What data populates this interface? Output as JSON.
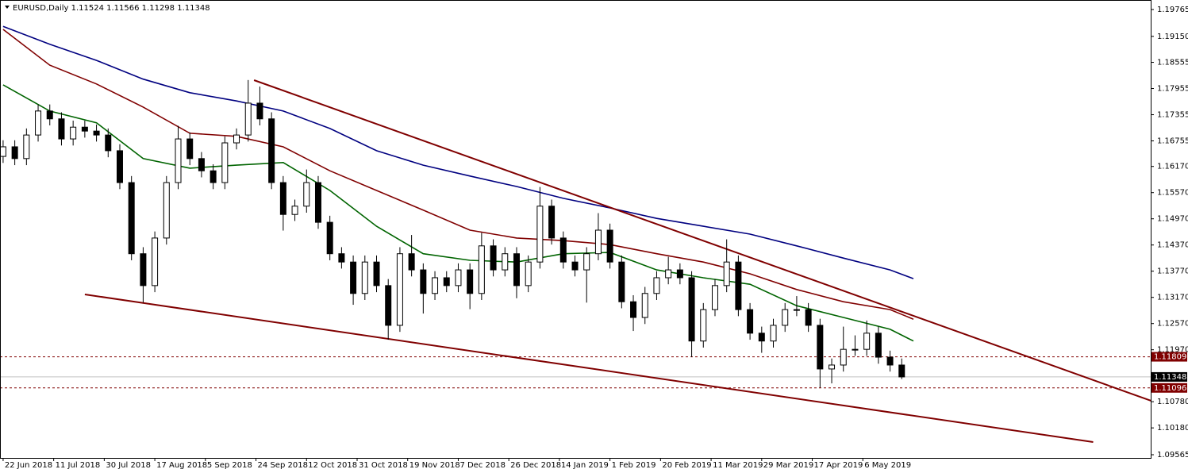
{
  "chart_data": {
    "type": "candlestick",
    "title": "EURUSD,Daily  1.11524 1.11566 1.11298 1.11348",
    "xlim": [
      -0.8,
      295
    ],
    "ylim": [
      1.09492,
      1.19983
    ],
    "x_date_ticks": [
      {
        "value": 0,
        "label": "22 Jun 2018"
      },
      {
        "value": 13,
        "label": "11 Jul 2018"
      },
      {
        "value": 26,
        "label": "30 Jul 2018"
      },
      {
        "value": 39,
        "label": "17 Aug 2018"
      },
      {
        "value": 52,
        "label": "5 Sep 2018"
      },
      {
        "value": 65,
        "label": "24 Sep 2018"
      },
      {
        "value": 78,
        "label": "12 Oct 2018"
      },
      {
        "value": 91,
        "label": "31 Oct 2018"
      },
      {
        "value": 104,
        "label": "19 Nov 2018"
      },
      {
        "value": 117,
        "label": "7 Dec 2018"
      },
      {
        "value": 130,
        "label": "26 Dec 2018"
      },
      {
        "value": 143,
        "label": "14 Jan 2019"
      },
      {
        "value": 156,
        "label": "1 Feb 2019"
      },
      {
        "value": 169,
        "label": "20 Feb 2019"
      },
      {
        "value": 182,
        "label": "11 Mar 2019"
      },
      {
        "value": 195,
        "label": "29 Mar 2019"
      },
      {
        "value": 208,
        "label": "17 Apr 2019"
      },
      {
        "value": 221,
        "label": "6 May 2019"
      }
    ],
    "yticks": [
      1.19765,
      {
        "value": 1.1915,
        "label": "1.19150"
      },
      1.18555,
      1.17955,
      1.17355,
      1.16755,
      {
        "value": 1.1617,
        "label": "1.16170"
      },
      {
        "value": 1.1557,
        "label": "1.15570"
      },
      {
        "value": 1.1497,
        "label": "1.14970"
      },
      {
        "value": 1.1437,
        "label": "1.14370"
      },
      {
        "value": 1.1377,
        "label": "1.13770"
      },
      {
        "value": 1.1317,
        "label": "1.13170"
      },
      {
        "value": 1.1257,
        "label": "1.12570"
      },
      {
        "value": 1.1197,
        "label": "1.11970"
      },
      {
        "value": 1.1078,
        "label": "1.10780"
      },
      {
        "value": 1.1018,
        "label": "1.10180"
      },
      1.09565
    ],
    "x": [
      0,
      3,
      6,
      9,
      12,
      15,
      18,
      21,
      24,
      27,
      30,
      33,
      36,
      39,
      42,
      45,
      48,
      51,
      54,
      57,
      60,
      63,
      66,
      69,
      72,
      75,
      78,
      81,
      84,
      87,
      90,
      93,
      96,
      99,
      102,
      105,
      108,
      111,
      114,
      117,
      120,
      123,
      126,
      129,
      132,
      135,
      138,
      141,
      144,
      147,
      150,
      153,
      156,
      159,
      162,
      165,
      168,
      171,
      174,
      177,
      180,
      183,
      186,
      189,
      192,
      195,
      198,
      201,
      204,
      207,
      210,
      213,
      216,
      219,
      222,
      225,
      228,
      231
    ],
    "open": [
      1.164,
      1.1662,
      1.1635,
      1.1689,
      1.1744,
      1.1726,
      1.168,
      1.1707,
      1.1698,
      1.1689,
      1.1653,
      1.158,
      1.1417,
      1.1344,
      1.1453,
      1.158,
      1.168,
      1.1635,
      1.1607,
      1.158,
      1.1671,
      1.1689,
      1.1762,
      1.1726,
      1.158,
      1.1507,
      1.1526,
      1.158,
      1.1489,
      1.1417,
      1.1398,
      1.1326,
      1.1398,
      1.1344,
      1.1253,
      1.1417,
      1.138,
      1.1326,
      1.1362,
      1.1344,
      1.138,
      1.1326,
      1.1435,
      1.138,
      1.1417,
      1.1344,
      1.1398,
      1.1526,
      1.1453,
      1.1398,
      1.138,
      1.1417,
      1.1471,
      1.1398,
      1.1307,
      1.1271,
      1.1326,
      1.1362,
      1.138,
      1.1362,
      1.1217,
      1.1289,
      1.1344,
      1.1398,
      1.1289,
      1.1235,
      1.1217,
      1.1253,
      1.1289,
      1.1289,
      1.1253,
      1.1153,
      1.1162,
      1.1198,
      1.1198,
      1.1235,
      1.118,
      1.1162
    ],
    "high": [
      1.1677,
      1.1677,
      1.1704,
      1.1759,
      1.1759,
      1.1741,
      1.1722,
      1.1722,
      1.1713,
      1.1704,
      1.1668,
      1.1595,
      1.1432,
      1.1468,
      1.1595,
      1.171,
      1.1695,
      1.165,
      1.1622,
      1.1686,
      1.1704,
      1.1815,
      1.18,
      1.1741,
      1.1595,
      1.1541,
      1.161,
      1.1595,
      1.1504,
      1.1432,
      1.1413,
      1.1413,
      1.1413,
      1.1359,
      1.1432,
      1.146,
      1.1395,
      1.1377,
      1.1377,
      1.1395,
      1.1395,
      1.1465,
      1.145,
      1.1432,
      1.1432,
      1.1413,
      1.157,
      1.1541,
      1.1468,
      1.1413,
      1.1432,
      1.151,
      1.1486,
      1.1413,
      1.1322,
      1.1341,
      1.1377,
      1.141,
      1.1395,
      1.1377,
      1.1304,
      1.1359,
      1.145,
      1.1413,
      1.1304,
      1.125,
      1.1268,
      1.1304,
      1.132,
      1.1304,
      1.1268,
      1.1177,
      1.125,
      1.123,
      1.1264,
      1.125,
      1.1195,
      1.1177
    ],
    "low": [
      1.1625,
      1.162,
      1.162,
      1.1674,
      1.1711,
      1.1665,
      1.1665,
      1.1683,
      1.1674,
      1.1638,
      1.1565,
      1.1402,
      1.1305,
      1.1329,
      1.1438,
      1.1565,
      1.162,
      1.1592,
      1.1565,
      1.1565,
      1.1656,
      1.1674,
      1.1711,
      1.1565,
      1.147,
      1.1492,
      1.1511,
      1.1474,
      1.1402,
      1.1383,
      1.13,
      1.1311,
      1.1329,
      1.122,
      1.1238,
      1.1365,
      1.128,
      1.1311,
      1.1329,
      1.1329,
      1.129,
      1.1311,
      1.1365,
      1.1365,
      1.1315,
      1.1329,
      1.1383,
      1.1438,
      1.1383,
      1.1365,
      1.1305,
      1.1402,
      1.1383,
      1.1292,
      1.124,
      1.1256,
      1.1311,
      1.1347,
      1.1347,
      1.118,
      1.1202,
      1.1274,
      1.1329,
      1.1274,
      1.122,
      1.119,
      1.1202,
      1.1238,
      1.1274,
      1.1238,
      1.111,
      1.112,
      1.1147,
      1.1183,
      1.1183,
      1.1165,
      1.1147,
      1.11298
    ],
    "close": [
      1.1662,
      1.1635,
      1.1689,
      1.1744,
      1.1726,
      1.168,
      1.1707,
      1.1698,
      1.1689,
      1.1653,
      1.158,
      1.1417,
      1.1344,
      1.1453,
      1.158,
      1.168,
      1.1635,
      1.1607,
      1.158,
      1.1671,
      1.1689,
      1.1762,
      1.1726,
      1.158,
      1.1507,
      1.1526,
      1.158,
      1.1489,
      1.1417,
      1.1398,
      1.1326,
      1.1398,
      1.1344,
      1.1253,
      1.1417,
      1.138,
      1.1326,
      1.1362,
      1.1344,
      1.138,
      1.1326,
      1.1435,
      1.138,
      1.1417,
      1.1344,
      1.1398,
      1.1526,
      1.1453,
      1.1398,
      1.138,
      1.1417,
      1.1471,
      1.1398,
      1.1307,
      1.1271,
      1.1326,
      1.1362,
      1.138,
      1.1362,
      1.1217,
      1.1289,
      1.1344,
      1.1398,
      1.1289,
      1.1235,
      1.1217,
      1.1253,
      1.1289,
      1.1289,
      1.1253,
      1.1153,
      1.1162,
      1.1198,
      1.1198,
      1.1235,
      1.118,
      1.1162,
      1.11348
    ],
    "candle_color": "#000000",
    "bull_fill": "#ffffff",
    "moving_averages": [
      {
        "color": "#000080",
        "x": [
          0,
          12,
          24,
          36,
          48,
          60,
          72,
          84,
          96,
          108,
          120,
          132,
          144,
          156,
          168,
          180,
          192,
          204,
          216,
          228,
          234
        ],
        "values": [
          1.1938,
          1.1897,
          1.186,
          1.1817,
          1.1786,
          1.1767,
          1.1744,
          1.1704,
          1.1653,
          1.162,
          1.1595,
          1.1571,
          1.1544,
          1.1522,
          1.1498,
          1.148,
          1.1462,
          1.1435,
          1.1407,
          1.138,
          1.136
        ]
      },
      {
        "color": "#800000",
        "x": [
          0,
          12,
          24,
          36,
          48,
          60,
          72,
          84,
          96,
          108,
          120,
          132,
          144,
          156,
          168,
          180,
          192,
          204,
          216,
          228,
          234
        ],
        "values": [
          1.1931,
          1.1849,
          1.1806,
          1.1753,
          1.1693,
          1.1686,
          1.1662,
          1.1607,
          1.1562,
          1.1517,
          1.1471,
          1.1453,
          1.1447,
          1.1438,
          1.1417,
          1.1398,
          1.1371,
          1.1335,
          1.1307,
          1.1289,
          1.1267
        ]
      },
      {
        "color": "#006400",
        "x": [
          0,
          12,
          24,
          36,
          48,
          60,
          72,
          84,
          96,
          108,
          120,
          132,
          144,
          156,
          168,
          180,
          192,
          204,
          216,
          228,
          234
        ],
        "values": [
          1.1804,
          1.1744,
          1.1717,
          1.1635,
          1.1613,
          1.162,
          1.1626,
          1.1562,
          1.148,
          1.1417,
          1.1402,
          1.1398,
          1.1417,
          1.142,
          1.138,
          1.1362,
          1.1347,
          1.1298,
          1.1271,
          1.1244,
          1.1217
        ]
      }
    ],
    "trendlines": [
      {
        "color": "#800000",
        "x": [
          64.5,
          295.1
        ],
        "values": [
          1.18147,
          1.10801
        ]
      },
      {
        "color": "#800000",
        "x": [
          21,
          280.2
        ],
        "values": [
          1.13238,
          1.09856
        ]
      }
    ],
    "levels": [
      {
        "price": 1.11809,
        "color": "#800000",
        "dashed": true
      },
      {
        "price": 1.11348,
        "color": "#000000",
        "dashed": false
      },
      {
        "price": 1.11096,
        "color": "#800000",
        "dashed": true
      }
    ]
  }
}
